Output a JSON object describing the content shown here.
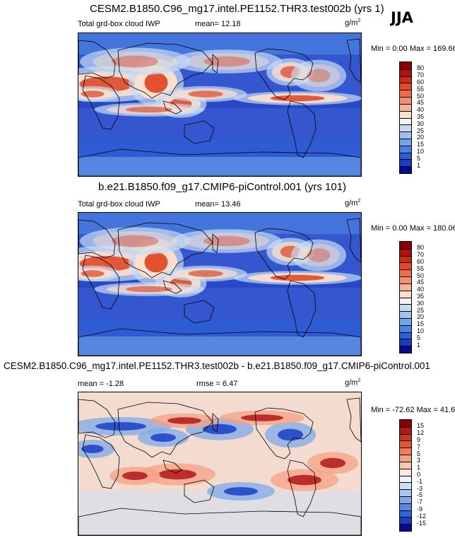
{
  "season": "JJA",
  "units": "g/m",
  "units_sup": "2",
  "panels": [
    {
      "title": "CESM2.B1850.C96_mg17.intel.PE1152.THR3.test002b (yrs 1)",
      "var_label": "Total grd-box cloud IWP",
      "stat1": "mean=  12.18",
      "stat2": "",
      "minmax": "Min =   0.00 Max = 169.66",
      "ticks": [
        "80",
        "70",
        "60",
        "55",
        "50",
        "45",
        "40",
        "35",
        "30",
        "25",
        "20",
        "15",
        "10",
        "5",
        "1"
      ]
    },
    {
      "title": "b.e21.B1850.f09_g17.CMIP6-piControl.001 (yrs 101)",
      "var_label": "Total grd-box cloud IWP",
      "stat1": "mean=  13.46",
      "stat2": "",
      "minmax": "Min =   0.00 Max = 180.06",
      "ticks": [
        "80",
        "70",
        "60",
        "55",
        "50",
        "45",
        "40",
        "35",
        "30",
        "25",
        "20",
        "15",
        "10",
        "5",
        "1"
      ]
    },
    {
      "title": "CESM2.B1850.C96_mg17.intel.PE1152.THR3.test002b - b.e21.B1850.f09_g17.CMIP6-piControl.001",
      "var_label": "",
      "stat1": "mean =  -1.28",
      "stat2": "rmse =   6.47",
      "minmax": "Min = -72.62 Max =  41.61",
      "ticks": [
        "15",
        "12",
        "9",
        "7",
        "5",
        "3",
        "1",
        "0",
        "-1",
        "-3",
        "-5",
        "-7",
        "-9",
        "-12",
        "-15"
      ]
    }
  ],
  "colors": {
    "abs_scale": [
      "#8b0000",
      "#b01010",
      "#cc2a10",
      "#e04a28",
      "#ee6e48",
      "#f49070",
      "#f8b498",
      "#fde0cc",
      "#f3f3f3",
      "#c6dbf3",
      "#9ec2ee",
      "#6fa3ea",
      "#4a82e2",
      "#2a5fd8",
      "#1a3cc0",
      "#0a0a8e"
    ],
    "diff_scale": [
      "#8b0000",
      "#b01818",
      "#cc3320",
      "#e25535",
      "#ef7c5a",
      "#f6a184",
      "#fbc6b0",
      "#fde8dc",
      "#eef2fa",
      "#cfe0f5",
      "#a9c8f0",
      "#7eaaea",
      "#5589e2",
      "#3364d8",
      "#1a3fc6",
      "#0a0a8e"
    ],
    "map_base_abs": "#3457cf",
    "map_base_diff": "#f3dccf",
    "coast": "#000000"
  }
}
